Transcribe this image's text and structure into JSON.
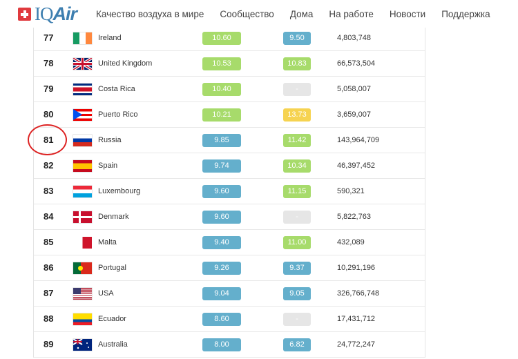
{
  "header": {
    "brand": "IQ",
    "brand_accent": "Air",
    "nav": [
      "Качество воздуха в мире",
      "Сообщество",
      "Дома",
      "На работе",
      "Новости",
      "Поддержка"
    ]
  },
  "colors": {
    "green": "#9ed85c",
    "blue": "#54a7c7",
    "yellow": "#f6cf3f",
    "grey": "#e4e4e4"
  },
  "rows": [
    {
      "rank": "77",
      "country": "Ireland",
      "flag": "ie",
      "v2018": "10.60",
      "c1": "green",
      "v2017": "9.50",
      "c2": "blue",
      "population": "4,803,748"
    },
    {
      "rank": "78",
      "country": "United Kingdom",
      "flag": "gb",
      "v2018": "10.53",
      "c1": "green",
      "v2017": "10.83",
      "c2": "green",
      "population": "66,573,504"
    },
    {
      "rank": "79",
      "country": "Costa Rica",
      "flag": "cr",
      "v2018": "10.40",
      "c1": "green",
      "v2017": "-",
      "c2": "grey",
      "population": "5,058,007"
    },
    {
      "rank": "80",
      "country": "Puerto Rico",
      "flag": "pr",
      "v2018": "10.21",
      "c1": "green",
      "v2017": "13.73",
      "c2": "yellow",
      "population": "3,659,007"
    },
    {
      "rank": "81",
      "country": "Russia",
      "flag": "ru",
      "v2018": "9.85",
      "c1": "blue",
      "v2017": "11.42",
      "c2": "green",
      "population": "143,964,709"
    },
    {
      "rank": "82",
      "country": "Spain",
      "flag": "es",
      "v2018": "9.74",
      "c1": "blue",
      "v2017": "10.34",
      "c2": "green",
      "population": "46,397,452"
    },
    {
      "rank": "83",
      "country": "Luxembourg",
      "flag": "lu",
      "v2018": "9.60",
      "c1": "blue",
      "v2017": "11.15",
      "c2": "green",
      "population": "590,321"
    },
    {
      "rank": "84",
      "country": "Denmark",
      "flag": "dk",
      "v2018": "9.60",
      "c1": "blue",
      "v2017": "-",
      "c2": "grey",
      "population": "5,822,763"
    },
    {
      "rank": "85",
      "country": "Malta",
      "flag": "mt",
      "v2018": "9.40",
      "c1": "blue",
      "v2017": "11.00",
      "c2": "green",
      "population": "432,089"
    },
    {
      "rank": "86",
      "country": "Portugal",
      "flag": "pt",
      "v2018": "9.26",
      "c1": "blue",
      "v2017": "9.37",
      "c2": "blue",
      "population": "10,291,196"
    },
    {
      "rank": "87",
      "country": "USA",
      "flag": "us",
      "v2018": "9.04",
      "c1": "blue",
      "v2017": "9.05",
      "c2": "blue",
      "population": "326,766,748"
    },
    {
      "rank": "88",
      "country": "Ecuador",
      "flag": "ec",
      "v2018": "8.60",
      "c1": "blue",
      "v2017": "-",
      "c2": "grey",
      "population": "17,431,712"
    },
    {
      "rank": "89",
      "country": "Australia",
      "flag": "au",
      "v2018": "8.00",
      "c1": "blue",
      "v2017": "6.82",
      "c2": "blue",
      "population": "24,772,247"
    }
  ]
}
